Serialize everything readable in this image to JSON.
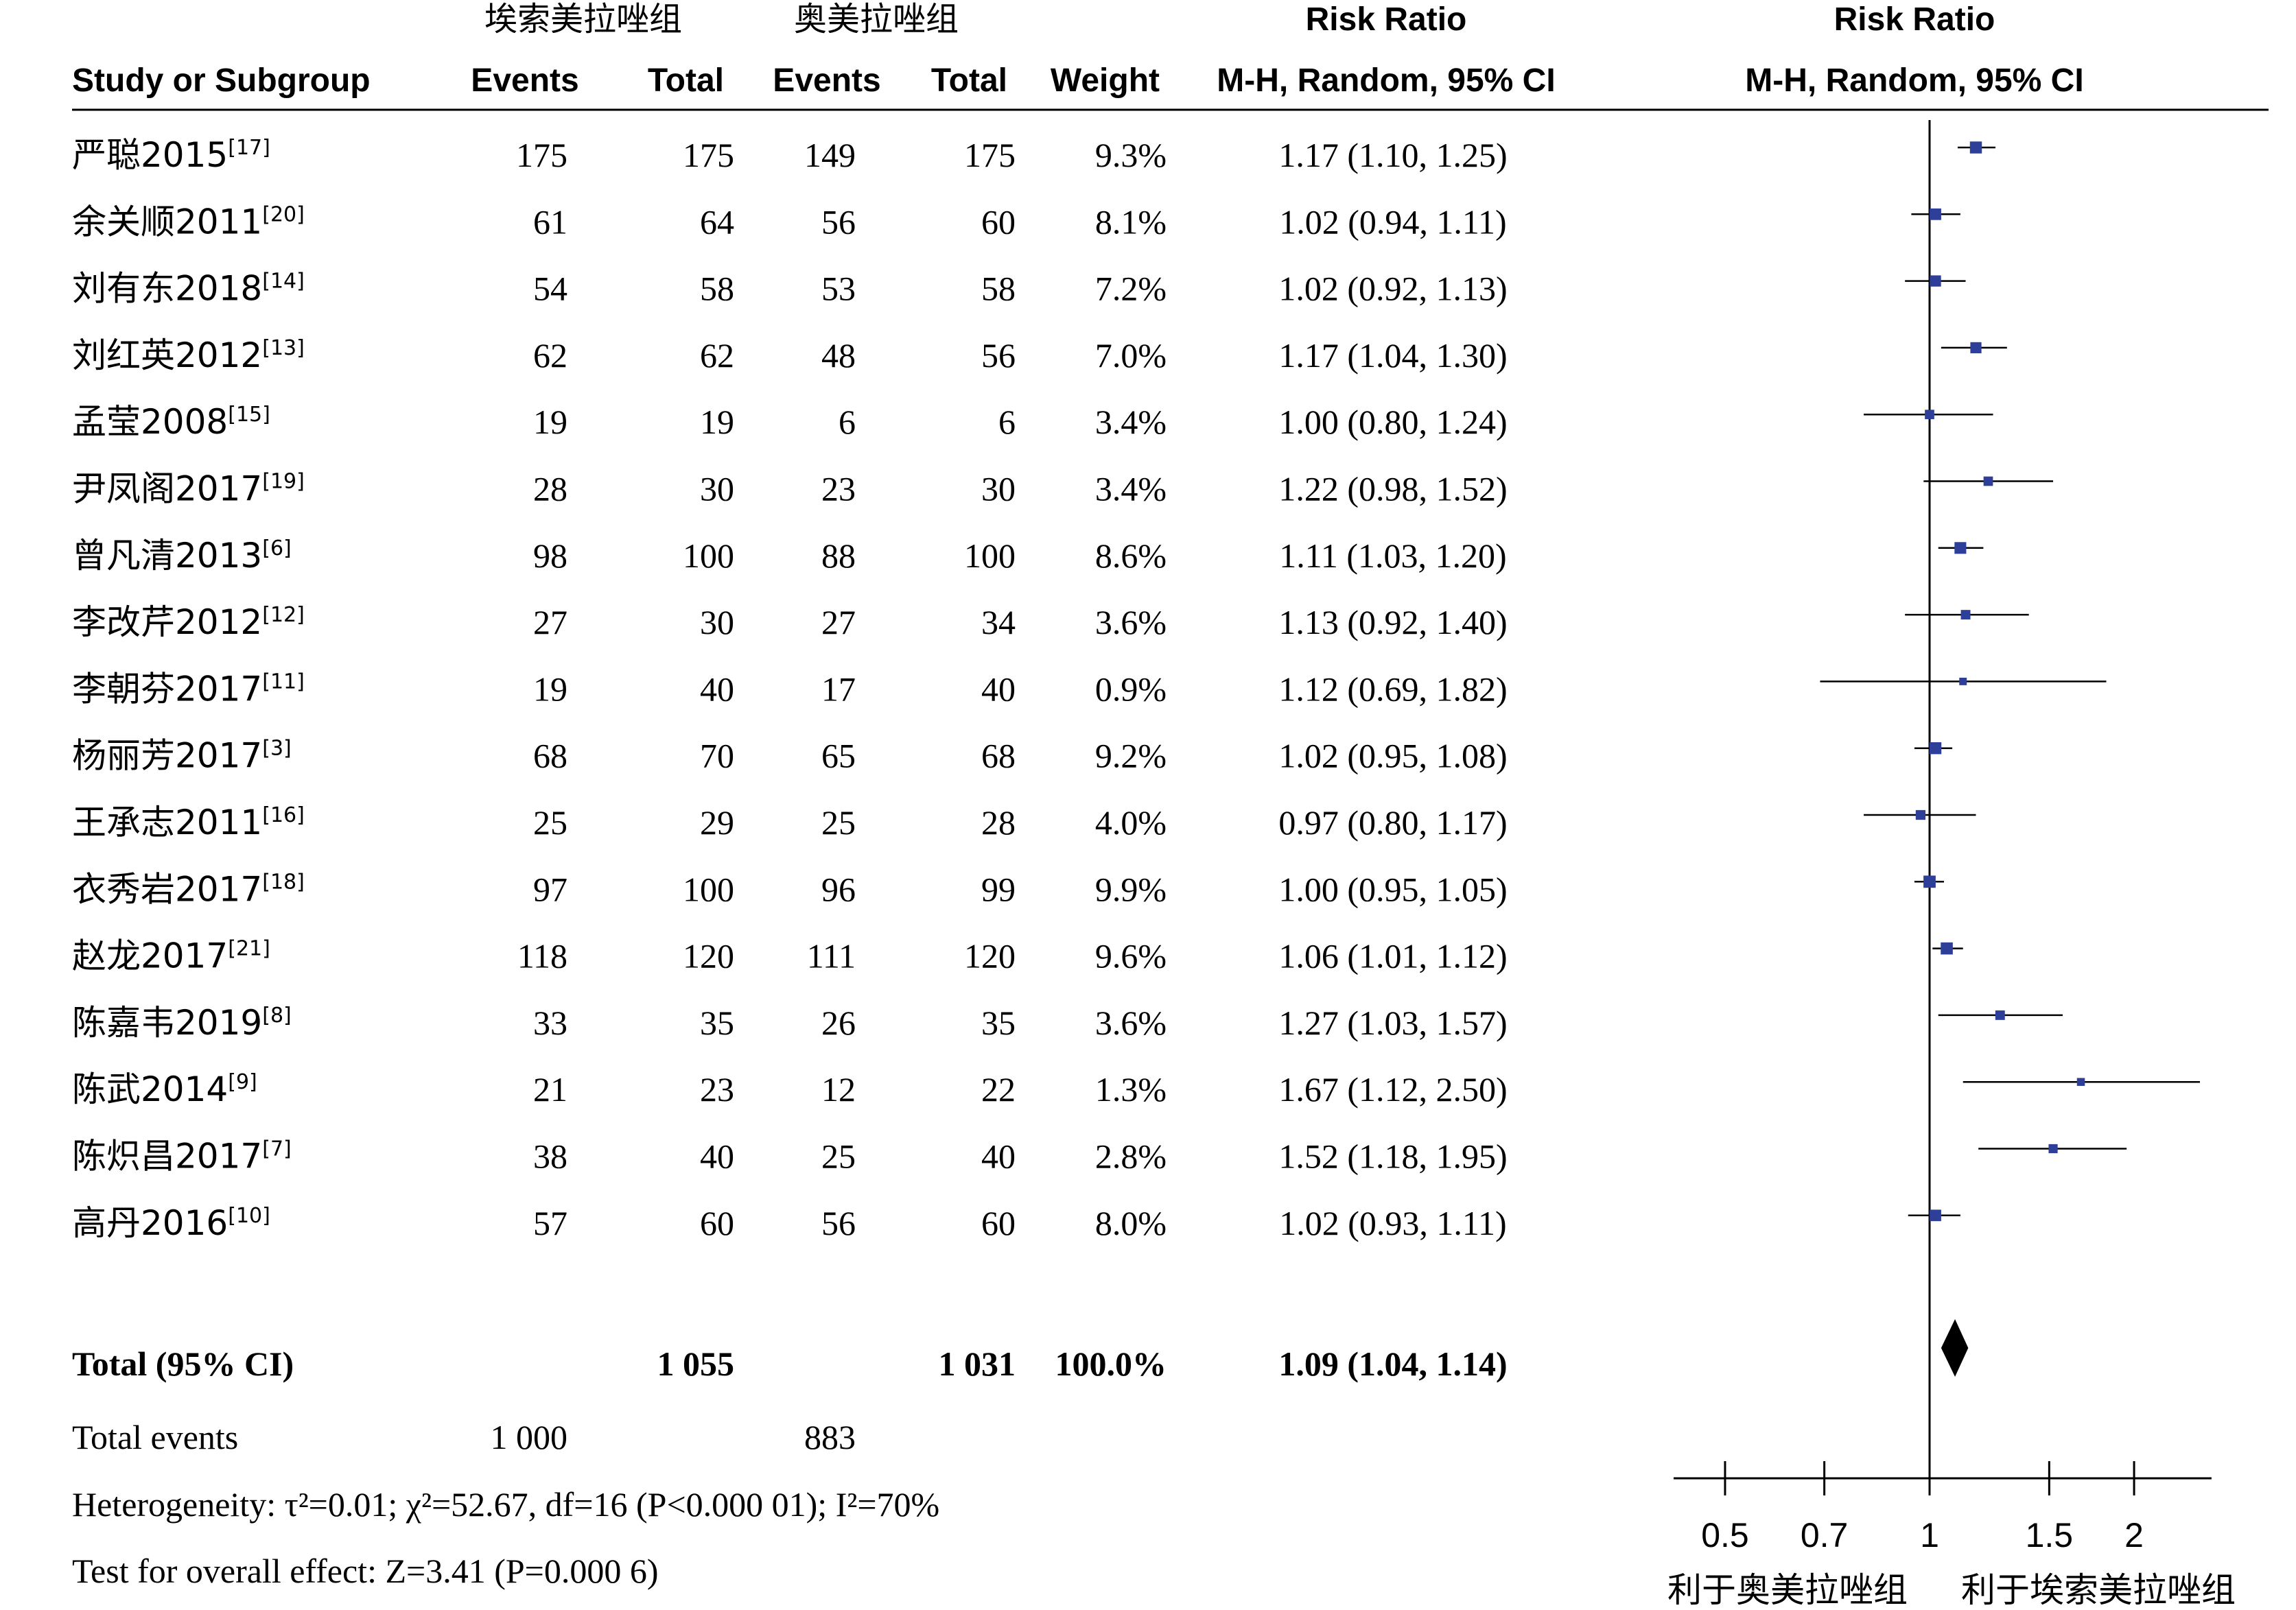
{
  "header": {
    "group_exp": "埃索美拉唑组",
    "group_ctrl": "奥美拉唑组",
    "risk_ratio_left": "Risk Ratio",
    "risk_ratio_right": "Risk Ratio",
    "study_col": "Study or Subgroup",
    "events_exp": "Events",
    "total_exp": "Total",
    "events_ctrl": "Events",
    "total_ctrl": "Total",
    "weight": "Weight",
    "method_left": "M-H, Random, 95% CI",
    "method_right": "M-H, Random, 95% CI"
  },
  "studies": [
    {
      "name": "严聪2015",
      "ref": "[17]",
      "e1": "175",
      "n1": "175",
      "e2": "149",
      "n2": "175",
      "weight": "9.3%",
      "ci_text": "1.17 (1.10, 1.25)"
    },
    {
      "name": "余关顺2011",
      "ref": "[20]",
      "e1": "61",
      "n1": "64",
      "e2": "56",
      "n2": "60",
      "weight": "8.1%",
      "ci_text": "1.02 (0.94, 1.11)"
    },
    {
      "name": "刘有东2018",
      "ref": "[14]",
      "e1": "54",
      "n1": "58",
      "e2": "53",
      "n2": "58",
      "weight": "7.2%",
      "ci_text": "1.02 (0.92, 1.13)"
    },
    {
      "name": "刘红英2012",
      "ref": "[13]",
      "e1": "62",
      "n1": "62",
      "e2": "48",
      "n2": "56",
      "weight": "7.0%",
      "ci_text": "1.17 (1.04, 1.30)"
    },
    {
      "name": "孟莹2008",
      "ref": "[15]",
      "e1": "19",
      "n1": "19",
      "e2": "6",
      "n2": "6",
      "weight": "3.4%",
      "ci_text": "1.00 (0.80, 1.24)"
    },
    {
      "name": "尹凤阁2017",
      "ref": "[19]",
      "e1": "28",
      "n1": "30",
      "e2": "23",
      "n2": "30",
      "weight": "3.4%",
      "ci_text": "1.22 (0.98, 1.52)"
    },
    {
      "name": "曾凡清2013",
      "ref": "[6]",
      "e1": "98",
      "n1": "100",
      "e2": "88",
      "n2": "100",
      "weight": "8.6%",
      "ci_text": "1.11 (1.03, 1.20)"
    },
    {
      "name": "李改芹2012",
      "ref": "[12]",
      "e1": "27",
      "n1": "30",
      "e2": "27",
      "n2": "34",
      "weight": "3.6%",
      "ci_text": "1.13 (0.92, 1.40)"
    },
    {
      "name": "李朝芬2017",
      "ref": "[11]",
      "e1": "19",
      "n1": "40",
      "e2": "17",
      "n2": "40",
      "weight": "0.9%",
      "ci_text": "1.12 (0.69, 1.82)"
    },
    {
      "name": "杨丽芳2017",
      "ref": "[3]",
      "e1": "68",
      "n1": "70",
      "e2": "65",
      "n2": "68",
      "weight": "9.2%",
      "ci_text": "1.02 (0.95, 1.08)"
    },
    {
      "name": "王承志2011",
      "ref": "[16]",
      "e1": "25",
      "n1": "29",
      "e2": "25",
      "n2": "28",
      "weight": "4.0%",
      "ci_text": "0.97 (0.80, 1.17)"
    },
    {
      "name": "衣秀岩2017",
      "ref": "[18]",
      "e1": "97",
      "n1": "100",
      "e2": "96",
      "n2": "99",
      "weight": "9.9%",
      "ci_text": "1.00 (0.95, 1.05)"
    },
    {
      "name": "赵龙2017",
      "ref": "[21]",
      "e1": "118",
      "n1": "120",
      "e2": "111",
      "n2": "120",
      "weight": "9.6%",
      "ci_text": "1.06 (1.01, 1.12)"
    },
    {
      "name": "陈嘉韦2019",
      "ref": "[8]",
      "e1": "33",
      "n1": "35",
      "e2": "26",
      "n2": "35",
      "weight": "3.6%",
      "ci_text": "1.27 (1.03, 1.57)"
    },
    {
      "name": "陈武2014",
      "ref": "[9]",
      "e1": "21",
      "n1": "23",
      "e2": "12",
      "n2": "22",
      "weight": "1.3%",
      "ci_text": "1.67 (1.12, 2.50)"
    },
    {
      "name": "陈炽昌2017",
      "ref": "[7]",
      "e1": "38",
      "n1": "40",
      "e2": "25",
      "n2": "40",
      "weight": "2.8%",
      "ci_text": "1.52 (1.18, 1.95)"
    },
    {
      "name": "高丹2016",
      "ref": "[10]",
      "e1": "57",
      "n1": "60",
      "e2": "56",
      "n2": "60",
      "weight": "8.0%",
      "ci_text": "1.02 (0.93, 1.11)"
    }
  ],
  "total": {
    "label": "Total (95% CI)",
    "n1": "1 055",
    "n2": "1 031",
    "weight": "100.0%",
    "ci_text": "1.09 (1.04, 1.14)"
  },
  "total_events": {
    "label": "Total events",
    "e1": "1 000",
    "e2": "883"
  },
  "heterogeneity_text": "Heterogeneity: τ²=0.01; χ²=52.67, df=16 (P<0.000 01); I²=70%",
  "overall_effect_text": "Test for overall effect: Z=3.41 (P=0.000 6)",
  "axis": {
    "tick_labels": [
      "0.5",
      "0.7",
      "1",
      "1.5",
      "2"
    ],
    "favours_left": "利于奥美拉唑组",
    "favours_right": "利于埃索美拉唑组"
  },
  "colors": {
    "study_marker": "#2e3f99",
    "summary_diamond": "#000000",
    "line": "#000000"
  },
  "chart_data": {
    "type": "forest",
    "scale": "log",
    "xlim": [
      0.42,
      2.6
    ],
    "ticks": [
      0.5,
      0.7,
      1,
      1.5,
      2
    ],
    "null_line": 1,
    "points": [
      {
        "rr": 1.17,
        "lo": 1.1,
        "hi": 1.25,
        "weight": 9.3
      },
      {
        "rr": 1.02,
        "lo": 0.94,
        "hi": 1.11,
        "weight": 8.1
      },
      {
        "rr": 1.02,
        "lo": 0.92,
        "hi": 1.13,
        "weight": 7.2
      },
      {
        "rr": 1.17,
        "lo": 1.04,
        "hi": 1.3,
        "weight": 7.0
      },
      {
        "rr": 1.0,
        "lo": 0.8,
        "hi": 1.24,
        "weight": 3.4
      },
      {
        "rr": 1.22,
        "lo": 0.98,
        "hi": 1.52,
        "weight": 3.4
      },
      {
        "rr": 1.11,
        "lo": 1.03,
        "hi": 1.2,
        "weight": 8.6
      },
      {
        "rr": 1.13,
        "lo": 0.92,
        "hi": 1.4,
        "weight": 3.6
      },
      {
        "rr": 1.12,
        "lo": 0.69,
        "hi": 1.82,
        "weight": 0.9
      },
      {
        "rr": 1.02,
        "lo": 0.95,
        "hi": 1.08,
        "weight": 9.2
      },
      {
        "rr": 0.97,
        "lo": 0.8,
        "hi": 1.17,
        "weight": 4.0
      },
      {
        "rr": 1.0,
        "lo": 0.95,
        "hi": 1.05,
        "weight": 9.9
      },
      {
        "rr": 1.06,
        "lo": 1.01,
        "hi": 1.12,
        "weight": 9.6
      },
      {
        "rr": 1.27,
        "lo": 1.03,
        "hi": 1.57,
        "weight": 3.6
      },
      {
        "rr": 1.67,
        "lo": 1.12,
        "hi": 2.5,
        "weight": 1.3
      },
      {
        "rr": 1.52,
        "lo": 1.18,
        "hi": 1.95,
        "weight": 2.8
      },
      {
        "rr": 1.02,
        "lo": 0.93,
        "hi": 1.11,
        "weight": 8.0
      }
    ],
    "summary": {
      "rr": 1.09,
      "lo": 1.04,
      "hi": 1.14
    }
  }
}
